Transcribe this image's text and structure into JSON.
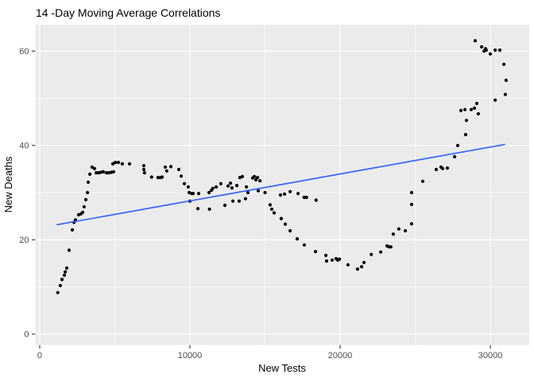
{
  "window": {
    "background": "#FFFFFF"
  },
  "colors": {
    "page_background": "#FFFFFF",
    "panel_background": "#EBEBEB",
    "grid_major": "#FFFFFF",
    "grid_minor": "#FFFFFF",
    "point": "#000000",
    "trend_line": "#3366FF",
    "tick_mark": "#333333",
    "tick_label": "#4D4D4D",
    "axis_title": "#000000",
    "title": "#000000"
  },
  "chart_data": {
    "type": "scatter",
    "title": "14 -Day Moving Average Correlations",
    "xlabel": "New Tests",
    "ylabel": "New Deaths",
    "x_ticks": [
      0,
      10000,
      20000,
      30000
    ],
    "x_tick_labels": [
      "0",
      "10000",
      "20000",
      "30000"
    ],
    "y_ticks": [
      0,
      20,
      40,
      60
    ],
    "y_tick_labels": [
      "0",
      "20",
      "40",
      "60"
    ],
    "x_minor_ticks": [
      5000,
      15000,
      25000
    ],
    "y_minor_ticks": [
      10,
      30,
      50
    ],
    "xlim": [
      -290,
      32590
    ],
    "ylim": [
      -2.3,
      65.6
    ],
    "grid": true,
    "legend": false,
    "points": [
      [
        1200,
        8.8
      ],
      [
        1370,
        10.3
      ],
      [
        1480,
        11.6
      ],
      [
        1640,
        12.5
      ],
      [
        1700,
        13.2
      ],
      [
        1800,
        14.0
      ],
      [
        1960,
        17.8
      ],
      [
        2170,
        22.1
      ],
      [
        2280,
        23.7
      ],
      [
        2380,
        24.2
      ],
      [
        2590,
        25.3
      ],
      [
        2750,
        25.5
      ],
      [
        2860,
        25.8
      ],
      [
        2960,
        27.0
      ],
      [
        3070,
        28.5
      ],
      [
        3180,
        30.0
      ],
      [
        3230,
        32.2
      ],
      [
        3340,
        33.9
      ],
      [
        3490,
        35.4
      ],
      [
        3650,
        35.1
      ],
      [
        3760,
        34.2
      ],
      [
        3920,
        34.2
      ],
      [
        4070,
        34.3
      ],
      [
        4230,
        34.4
      ],
      [
        4440,
        34.2
      ],
      [
        4600,
        34.2
      ],
      [
        4760,
        34.3
      ],
      [
        4870,
        36.1
      ],
      [
        4920,
        34.4
      ],
      [
        5030,
        36.4
      ],
      [
        5240,
        36.4
      ],
      [
        5500,
        36.1
      ],
      [
        5980,
        36.1
      ],
      [
        6930,
        35.7
      ],
      [
        6930,
        34.9
      ],
      [
        6980,
        34.2
      ],
      [
        7450,
        33.3
      ],
      [
        7880,
        33.2
      ],
      [
        8040,
        33.2
      ],
      [
        8150,
        33.3
      ],
      [
        8360,
        35.4
      ],
      [
        8460,
        34.6
      ],
      [
        8730,
        35.5
      ],
      [
        9260,
        34.9
      ],
      [
        9420,
        33.5
      ],
      [
        9630,
        31.9
      ],
      [
        9890,
        31.2
      ],
      [
        9950,
        30.0
      ],
      [
        10000,
        28.2
      ],
      [
        10110,
        29.8
      ],
      [
        10210,
        29.8
      ],
      [
        10530,
        26.6
      ],
      [
        10580,
        29.8
      ],
      [
        11270,
        30.0
      ],
      [
        11300,
        26.5
      ],
      [
        11430,
        30.5
      ],
      [
        11530,
        30.9
      ],
      [
        11750,
        31.2
      ],
      [
        12060,
        31.9
      ],
      [
        12330,
        27.3
      ],
      [
        12540,
        31.4
      ],
      [
        12700,
        32.0
      ],
      [
        12800,
        31.0
      ],
      [
        12860,
        28.2
      ],
      [
        13120,
        31.5
      ],
      [
        13280,
        28.2
      ],
      [
        13330,
        33.2
      ],
      [
        13490,
        33.4
      ],
      [
        13700,
        28.7
      ],
      [
        13760,
        31.2
      ],
      [
        13860,
        30.0
      ],
      [
        14180,
        33.1
      ],
      [
        14290,
        33.4
      ],
      [
        14390,
        32.7
      ],
      [
        14500,
        33.2
      ],
      [
        14550,
        30.4
      ],
      [
        14660,
        32.5
      ],
      [
        15000,
        30.0
      ],
      [
        15340,
        27.4
      ],
      [
        15450,
        26.5
      ],
      [
        15610,
        25.7
      ],
      [
        16030,
        29.5
      ],
      [
        16080,
        24.5
      ],
      [
        16300,
        29.7
      ],
      [
        16350,
        23.3
      ],
      [
        16670,
        30.2
      ],
      [
        16670,
        21.9
      ],
      [
        17140,
        20.2
      ],
      [
        17200,
        29.8
      ],
      [
        17600,
        29.0
      ],
      [
        17620,
        18.9
      ],
      [
        17760,
        29.0
      ],
      [
        18360,
        17.5
      ],
      [
        18400,
        28.4
      ],
      [
        19050,
        16.7
      ],
      [
        19100,
        15.5
      ],
      [
        19470,
        15.7
      ],
      [
        19730,
        16.0
      ],
      [
        19840,
        15.7
      ],
      [
        19950,
        15.9
      ],
      [
        20530,
        14.7
      ],
      [
        21160,
        13.8
      ],
      [
        21430,
        14.3
      ],
      [
        21590,
        15.2
      ],
      [
        22070,
        16.9
      ],
      [
        22700,
        17.4
      ],
      [
        23120,
        18.7
      ],
      [
        23250,
        18.5
      ],
      [
        23380,
        18.5
      ],
      [
        23540,
        21.2
      ],
      [
        23910,
        22.3
      ],
      [
        24340,
        21.9
      ],
      [
        24760,
        23.4
      ],
      [
        24760,
        27.5
      ],
      [
        24760,
        30.0
      ],
      [
        25500,
        32.4
      ],
      [
        26400,
        34.9
      ],
      [
        26720,
        35.4
      ],
      [
        26830,
        35.1
      ],
      [
        27140,
        35.2
      ],
      [
        27620,
        37.6
      ],
      [
        27830,
        40.0
      ],
      [
        28040,
        47.4
      ],
      [
        28310,
        47.6
      ],
      [
        28360,
        42.3
      ],
      [
        28410,
        45.3
      ],
      [
        28730,
        47.6
      ],
      [
        28940,
        47.9
      ],
      [
        28990,
        62.2
      ],
      [
        29100,
        48.9
      ],
      [
        29200,
        46.7
      ],
      [
        29420,
        60.9
      ],
      [
        29580,
        60.0
      ],
      [
        29680,
        60.5
      ],
      [
        29730,
        60.2
      ],
      [
        30000,
        59.4
      ],
      [
        30320,
        60.2
      ],
      [
        30320,
        49.6
      ],
      [
        30630,
        60.2
      ],
      [
        30900,
        57.2
      ],
      [
        31000,
        50.8
      ],
      [
        31050,
        53.8
      ]
    ],
    "trend": {
      "type": "linear-fit",
      "x": [
        1160,
        30950
      ],
      "y": [
        23.2,
        40.2
      ]
    }
  }
}
